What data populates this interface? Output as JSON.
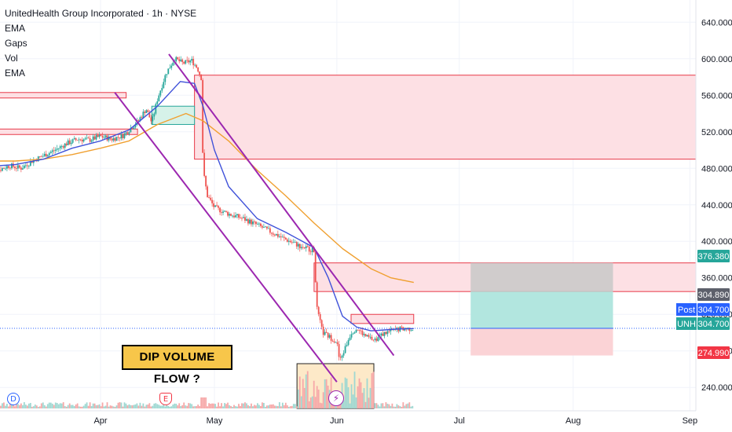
{
  "legend": {
    "title": "UnitedHealth Group Incorporated · 1h · NYSE",
    "lines": [
      "EMA",
      "Gaps",
      "Vol",
      "EMA"
    ]
  },
  "annotation": "DIP VOLUME FLOW ?",
  "badges": {
    "dividend": "D",
    "earnings": "E",
    "bolt": "⚡"
  },
  "colors": {
    "bullish": "#26a69a",
    "bearish": "#ef5350",
    "ema_fast": "#3f51d9",
    "ema_slow": "#f0a030",
    "channel": "#9c27b0",
    "zone_fill": "#fde0e4",
    "zone_border": "#e83a4a",
    "target": "#b2e6df",
    "stop": "#fbd3d6",
    "gray": "#c8c8c8"
  },
  "chart_data": {
    "type": "candlestick",
    "x_ticks": [
      "Apr",
      "May",
      "Jun",
      "Jul",
      "Aug",
      "Sep"
    ],
    "y_ticks": [
      240,
      280,
      320,
      360,
      400,
      440,
      480,
      520,
      560,
      600,
      640
    ],
    "y_tick_labels": [
      "240.000",
      "280.000",
      "320.000",
      "360.000",
      "400.000",
      "440.000",
      "480.000",
      "520.000",
      "560.000",
      "600.000",
      "640.000"
    ],
    "ylim": [
      217,
      654
    ],
    "price_tags": [
      {
        "label": "",
        "value": "376.380",
        "price": 376.38,
        "color": "#26a69a"
      },
      {
        "label": "",
        "value": "304.890",
        "price": 304.89,
        "color": "#5d606b"
      },
      {
        "label": "Post",
        "value": "304.700",
        "price": 304.7,
        "color": "#2962ff"
      },
      {
        "label": "UNH",
        "value": "304.700",
        "price": 304.7,
        "color": "#26a69a"
      },
      {
        "label": "",
        "value": "274.990",
        "price": 274.99,
        "color": "#f23645"
      }
    ],
    "price_path": [
      [
        0,
        485
      ],
      [
        0.4,
        478
      ],
      [
        0.8,
        483
      ],
      [
        1.2,
        480
      ],
      [
        1.6,
        488
      ],
      [
        2,
        494
      ],
      [
        2.4,
        500
      ],
      [
        2.8,
        507
      ],
      [
        3.2,
        512
      ],
      [
        3.6,
        511
      ],
      [
        4,
        515
      ],
      [
        4.4,
        512
      ],
      [
        4.8,
        516
      ],
      [
        5,
        522
      ],
      [
        5.3,
        531
      ],
      [
        5.6,
        545
      ],
      [
        5.8,
        530
      ],
      [
        6,
        556
      ],
      [
        6.3,
        584
      ],
      [
        6.6,
        600
      ],
      [
        6.9,
        595
      ],
      [
        7.2,
        598
      ],
      [
        7.4,
        590
      ],
      [
        7.55,
        578
      ],
      [
        7.6,
        478
      ],
      [
        7.75,
        450
      ],
      [
        8,
        437
      ],
      [
        8.5,
        430
      ],
      [
        9,
        425
      ],
      [
        9.5,
        418
      ],
      [
        10,
        410
      ],
      [
        10.5,
        402
      ],
      [
        11,
        395
      ],
      [
        11.5,
        390
      ],
      [
        11.6,
        326
      ],
      [
        11.8,
        300
      ],
      [
        12,
        296
      ],
      [
        12.3,
        290
      ],
      [
        12.4,
        268
      ],
      [
        12.6,
        284
      ],
      [
        12.8,
        300
      ],
      [
        13,
        305
      ],
      [
        13.3,
        296
      ],
      [
        13.6,
        292
      ],
      [
        14,
        300
      ],
      [
        14.5,
        304
      ],
      [
        15,
        304.7
      ]
    ],
    "ema_fast": [
      [
        0,
        482
      ],
      [
        1,
        484
      ],
      [
        2,
        490
      ],
      [
        3,
        502
      ],
      [
        4,
        510
      ],
      [
        5,
        522
      ],
      [
        6,
        548
      ],
      [
        6.8,
        575
      ],
      [
        7.3,
        573
      ],
      [
        7.6,
        548
      ],
      [
        8,
        500
      ],
      [
        8.5,
        460
      ],
      [
        9.5,
        425
      ],
      [
        10.5,
        410
      ],
      [
        11.5,
        393
      ],
      [
        12,
        360
      ],
      [
        12.5,
        318
      ],
      [
        13,
        306
      ],
      [
        13.5,
        302
      ],
      [
        14,
        303
      ],
      [
        14.5,
        304
      ],
      [
        15,
        304.5
      ]
    ],
    "ema_slow": [
      [
        0,
        488
      ],
      [
        1,
        488
      ],
      [
        2,
        490
      ],
      [
        3,
        495
      ],
      [
        4,
        502
      ],
      [
        5,
        510
      ],
      [
        6,
        528
      ],
      [
        7,
        540
      ],
      [
        7.6,
        532
      ],
      [
        8.5,
        510
      ],
      [
        9.5,
        478
      ],
      [
        10.5,
        450
      ],
      [
        11.5,
        420
      ],
      [
        12.5,
        392
      ],
      [
        13.5,
        370
      ],
      [
        14.2,
        360
      ],
      [
        15,
        355
      ]
    ],
    "channel_upper": [
      [
        6.4,
        605
      ],
      [
        14.3,
        275
      ]
    ],
    "channel_lower": [
      [
        4.5,
        563
      ],
      [
        12.3,
        246
      ]
    ],
    "supply_zones": [
      {
        "x0": 7.3,
        "x1": 31,
        "top": 582,
        "bottom": 490
      },
      {
        "x0": 11.5,
        "x1": 31,
        "top": 376.38,
        "bottom": 345
      },
      {
        "x0": 12.8,
        "x1": 15,
        "top": 320,
        "bottom": 310
      }
    ],
    "demand_boxes": [
      {
        "x0": 5.8,
        "x1": 7.3,
        "top": 548,
        "bottom": 528
      }
    ],
    "position": {
      "x0": 17,
      "x1": 22,
      "entry": 304.7,
      "target": 376.38,
      "gray_bottom": 345,
      "stop": 274.99
    },
    "volume_highlight": {
      "x0": 10.9,
      "x1": 13.6
    }
  }
}
